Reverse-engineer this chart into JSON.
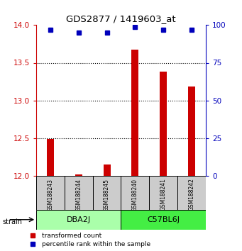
{
  "title": "GDS2877 / 1419603_at",
  "samples": [
    "GSM188243",
    "GSM188244",
    "GSM188245",
    "GSM188240",
    "GSM188241",
    "GSM188242"
  ],
  "red_values": [
    12.49,
    12.02,
    12.15,
    13.67,
    13.38,
    13.18
  ],
  "blue_values": [
    97,
    95,
    95,
    99,
    97,
    97
  ],
  "groups": [
    {
      "label": "DBA2J",
      "indices": [
        0,
        1,
        2
      ],
      "color": "#aaffaa"
    },
    {
      "label": "C57BL6J",
      "indices": [
        3,
        4,
        5
      ],
      "color": "#44ee44"
    }
  ],
  "ylim_left": [
    12,
    14
  ],
  "ylim_right": [
    0,
    100
  ],
  "yticks_left": [
    12,
    12.5,
    13,
    13.5,
    14
  ],
  "yticks_right": [
    0,
    25,
    50,
    75,
    100
  ],
  "bar_color": "#cc0000",
  "dot_color": "#0000bb",
  "sample_box_color": "#cccccc",
  "legend_red_label": "transformed count",
  "legend_blue_label": "percentile rank within the sample",
  "strain_label": "strain",
  "bar_width": 0.25
}
